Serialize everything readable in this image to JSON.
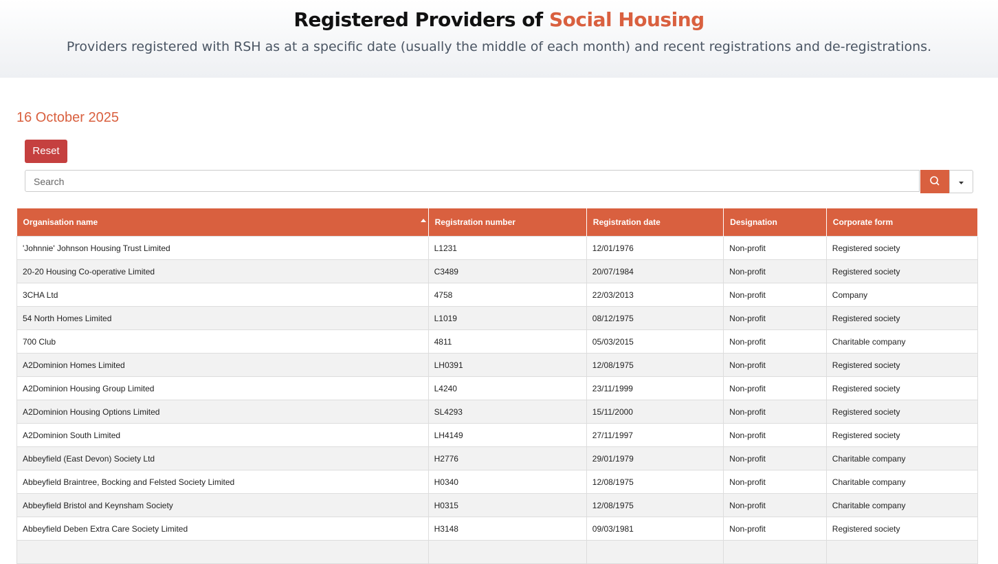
{
  "header": {
    "title_start": "Registered Providers of",
    "title_highlight": "Social Housing",
    "subtitle": "Providers registered with RSH as at a specific date (usually the middle of each month) and recent registrations and de-registrations."
  },
  "date": "16 October 2025",
  "controls": {
    "reset": "Reset",
    "search_placeholder": "Search"
  },
  "table": {
    "columns": [
      "Organisation name",
      "Registration number",
      "Registration date",
      "Designation",
      "Corporate form"
    ],
    "rows": [
      [
        "'Johnnie' Johnson Housing Trust Limited",
        "L1231",
        "12/01/1976",
        "Non-profit",
        "Registered society"
      ],
      [
        "20-20 Housing Co-operative Limited",
        "C3489",
        "20/07/1984",
        "Non-profit",
        "Registered society"
      ],
      [
        "3CHA Ltd",
        "4758",
        "22/03/2013",
        "Non-profit",
        "Company"
      ],
      [
        "54 North Homes Limited",
        "L1019",
        "08/12/1975",
        "Non-profit",
        "Registered society"
      ],
      [
        "700 Club",
        "4811",
        "05/03/2015",
        "Non-profit",
        "Charitable company"
      ],
      [
        "A2Dominion Homes Limited",
        "LH0391",
        "12/08/1975",
        "Non-profit",
        "Registered society"
      ],
      [
        "A2Dominion Housing Group Limited",
        "L4240",
        "23/11/1999",
        "Non-profit",
        "Registered society"
      ],
      [
        "A2Dominion Housing Options Limited",
        "SL4293",
        "15/11/2000",
        "Non-profit",
        "Registered society"
      ],
      [
        "A2Dominion South Limited",
        "LH4149",
        "27/11/1997",
        "Non-profit",
        "Registered society"
      ],
      [
        "Abbeyfield (East Devon) Society Ltd",
        "H2776",
        "29/01/1979",
        "Non-profit",
        "Charitable company"
      ],
      [
        "Abbeyfield Braintree, Bocking and Felsted Society Limited",
        "H0340",
        "12/08/1975",
        "Non-profit",
        "Charitable company"
      ],
      [
        "Abbeyfield Bristol and Keynsham Society",
        "H0315",
        "12/08/1975",
        "Non-profit",
        "Charitable company"
      ],
      [
        "Abbeyfield Deben Extra Care Society Limited",
        "H3148",
        "09/03/1981",
        "Non-profit",
        "Registered society"
      ]
    ]
  }
}
